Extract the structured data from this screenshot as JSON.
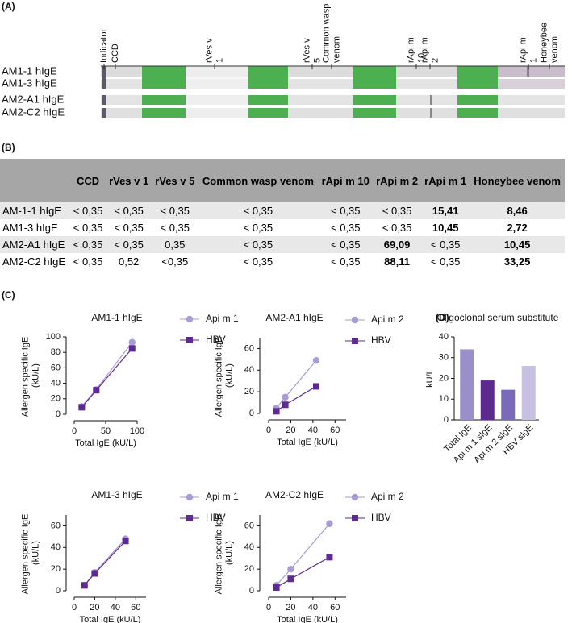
{
  "panel_a": {
    "label": "(A)",
    "columns": [
      "Indicator",
      "CCD",
      "rVes v 1",
      "rVes v 5",
      "Common wasp venom",
      "rApi m 10",
      "rApi m 2",
      "rApi m 1",
      "Honeybee venom"
    ],
    "rows": [
      "AM1-1 hIgE",
      "AM1-3 hIgE",
      "AM2-A1 hIgE",
      "AM2-C2 hIgE"
    ]
  },
  "panel_b": {
    "label": "(B)",
    "table": {
      "header": [
        "CCD",
        "rVes v 1",
        "rVes v 5",
        "Common wasp venom",
        "rApi m 10",
        "rApi m 2",
        "rApi m 1",
        "Honeybee venom"
      ],
      "rows": [
        {
          "label": "AM-1-1 hIgE",
          "cells": [
            "< 0,35",
            "< 0,35",
            "< 0,35",
            "< 0,35",
            "< 0,35",
            "< 0,35",
            {
              "text": "15,41",
              "bold": true
            },
            {
              "text": "8,46",
              "bold": true
            }
          ]
        },
        {
          "label": "AM1-3 hIgE",
          "cells": [
            "< 0,35",
            "< 0,35",
            "< 0,35",
            "< 0,35",
            "< 0,35",
            "< 0,35",
            {
              "text": "10,45",
              "bold": true
            },
            {
              "text": "2,72",
              "bold": true
            }
          ]
        },
        {
          "label": "AM2-A1 hIgE",
          "cells": [
            "< 0,35",
            "< 0,35",
            "0,35",
            "< 0,35",
            "< 0,35",
            {
              "text": "69,09",
              "bold": true
            },
            "< 0,35",
            {
              "text": "10,45",
              "bold": true
            }
          ]
        },
        {
          "label": "AM2-C2 hIgE",
          "cells": [
            "< 0,35",
            "0,52",
            "<0,35",
            "< 0,35",
            "< 0,35",
            {
              "text": "88,11",
              "bold": true
            },
            "< 0,35",
            {
              "text": "33,25",
              "bold": true
            }
          ]
        }
      ]
    }
  },
  "panel_c_label": "(C)",
  "panel_d_label": "(D)",
  "chart_data": [
    {
      "type": "line",
      "title": "AM1-1 hIgE",
      "xlabel": "Total IgE (kU/L)",
      "ylabel": "Allergen specific IgE (kU/L)",
      "x": [
        12,
        35,
        92
      ],
      "xlim": [
        0,
        100
      ],
      "xticks": [
        0,
        50,
        100
      ],
      "ylim": [
        0,
        100
      ],
      "yticks": [
        0,
        20,
        40,
        60,
        80,
        100
      ],
      "series": [
        {
          "name": "Api m 1",
          "color": "#a89bd6",
          "marker": "circle",
          "values": [
            10,
            32,
            93
          ]
        },
        {
          "name": "HBV",
          "color": "#5d2a91",
          "marker": "square",
          "values": [
            9,
            31,
            85
          ]
        }
      ]
    },
    {
      "type": "line",
      "title": "AM2-A1 hIgE",
      "xlabel": "Total IgE (kU/L)",
      "ylabel": "Allergen specific IgE (kU/L)",
      "x": [
        7,
        15,
        43
      ],
      "xlim": [
        0,
        70
      ],
      "xticks": [
        0,
        20,
        40,
        60
      ],
      "ylim": [
        0,
        70
      ],
      "yticks": [
        0,
        20,
        40,
        60
      ],
      "series": [
        {
          "name": "Api m 2",
          "color": "#a89bd6",
          "marker": "circle",
          "values": [
            5,
            15,
            49
          ]
        },
        {
          "name": "HBV",
          "color": "#5d2a91",
          "marker": "square",
          "values": [
            2,
            8,
            25
          ]
        }
      ]
    },
    {
      "type": "line",
      "title": "AM1-3 hIgE",
      "xlabel": "Total IgE (kU/L)",
      "ylabel": "Allergen specific IgE (kU/L)",
      "x": [
        10,
        20,
        50
      ],
      "xlim": [
        0,
        70
      ],
      "xticks": [
        0,
        20,
        40,
        60
      ],
      "ylim": [
        0,
        70
      ],
      "yticks": [
        0,
        20,
        40,
        60
      ],
      "series": [
        {
          "name": "Api m 1",
          "color": "#a89bd6",
          "marker": "circle",
          "values": [
            5,
            17,
            48
          ]
        },
        {
          "name": "HBV",
          "color": "#5d2a91",
          "marker": "square",
          "values": [
            5,
            16,
            46
          ]
        }
      ]
    },
    {
      "type": "line",
      "title": "AM2-C2 hIgE",
      "xlabel": "Total IgE (kU/L)",
      "ylabel": "Allergen specific IgE (kU/L)",
      "x": [
        7,
        20,
        55
      ],
      "xlim": [
        0,
        70
      ],
      "xticks": [
        0,
        20,
        40,
        60
      ],
      "ylim": [
        0,
        70
      ],
      "yticks": [
        0,
        20,
        40,
        60
      ],
      "series": [
        {
          "name": "Api m 2",
          "color": "#a89bd6",
          "marker": "circle",
          "values": [
            5,
            20,
            62
          ]
        },
        {
          "name": "HBV",
          "color": "#5d2a91",
          "marker": "square",
          "values": [
            3,
            11,
            31
          ]
        }
      ]
    },
    {
      "type": "bar",
      "title": "Oligoclonal serum substitute",
      "ylabel": "kU/L",
      "categories": [
        "Total IgE",
        "Api m 1 sIgE",
        "Api m 2 sIgE",
        "HBV sIgE"
      ],
      "values": [
        34,
        19,
        14.5,
        26
      ],
      "colors": [
        "#9b8fc9",
        "#5b2a8c",
        "#7a6ab8",
        "#c8c0e0"
      ],
      "ylim": [
        0,
        40
      ],
      "yticks": [
        0,
        10,
        20,
        30,
        40
      ]
    }
  ]
}
